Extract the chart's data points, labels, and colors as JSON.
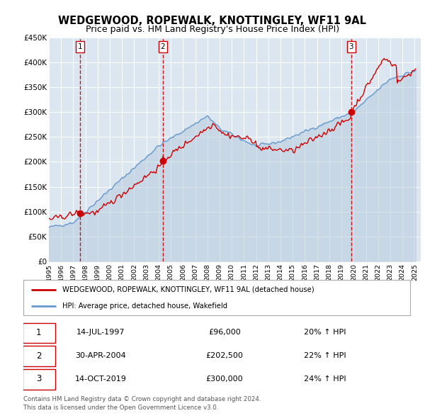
{
  "title": "WEDGEWOOD, ROPEWALK, KNOTTINGLEY, WF11 9AL",
  "subtitle": "Price paid vs. HM Land Registry's House Price Index (HPI)",
  "title_fontsize": 10.5,
  "subtitle_fontsize": 9,
  "bg_color": "#ffffff",
  "plot_bg_color": "#dce6f0",
  "grid_color": "#ffffff",
  "red_line_color": "#cc0000",
  "blue_line_color": "#6699cc",
  "blue_fill_color": "#b8ccdd",
  "sale_marker_color": "#cc0000",
  "vline_color": "#cc0000",
  "ylim": [
    0,
    450000
  ],
  "yticks": [
    0,
    50000,
    100000,
    150000,
    200000,
    250000,
    300000,
    350000,
    400000,
    450000
  ],
  "ytick_labels": [
    "£0",
    "£50K",
    "£100K",
    "£150K",
    "£200K",
    "£250K",
    "£300K",
    "£350K",
    "£400K",
    "£450K"
  ],
  "xlim_start": 1995.0,
  "xlim_end": 2025.5,
  "xticks": [
    1995,
    1996,
    1997,
    1998,
    1999,
    2000,
    2001,
    2002,
    2003,
    2004,
    2005,
    2006,
    2007,
    2008,
    2009,
    2010,
    2011,
    2012,
    2013,
    2014,
    2015,
    2016,
    2017,
    2018,
    2019,
    2020,
    2021,
    2022,
    2023,
    2024,
    2025
  ],
  "sale1_x": 1997.54,
  "sale1_y": 96000,
  "sale2_x": 2004.33,
  "sale2_y": 202500,
  "sale3_x": 2019.79,
  "sale3_y": 300000,
  "legend_label_red": "WEDGEWOOD, ROPEWALK, KNOTTINGLEY, WF11 9AL (detached house)",
  "legend_label_blue": "HPI: Average price, detached house, Wakefield",
  "table_entries": [
    {
      "num": "1",
      "date": "14-JUL-1997",
      "price": "£96,000",
      "hpi": "20% ↑ HPI"
    },
    {
      "num": "2",
      "date": "30-APR-2004",
      "price": "£202,500",
      "hpi": "22% ↑ HPI"
    },
    {
      "num": "3",
      "date": "14-OCT-2019",
      "price": "£300,000",
      "hpi": "24% ↑ HPI"
    }
  ],
  "footnote1": "Contains HM Land Registry data © Crown copyright and database right 2024.",
  "footnote2": "This data is licensed under the Open Government Licence v3.0."
}
